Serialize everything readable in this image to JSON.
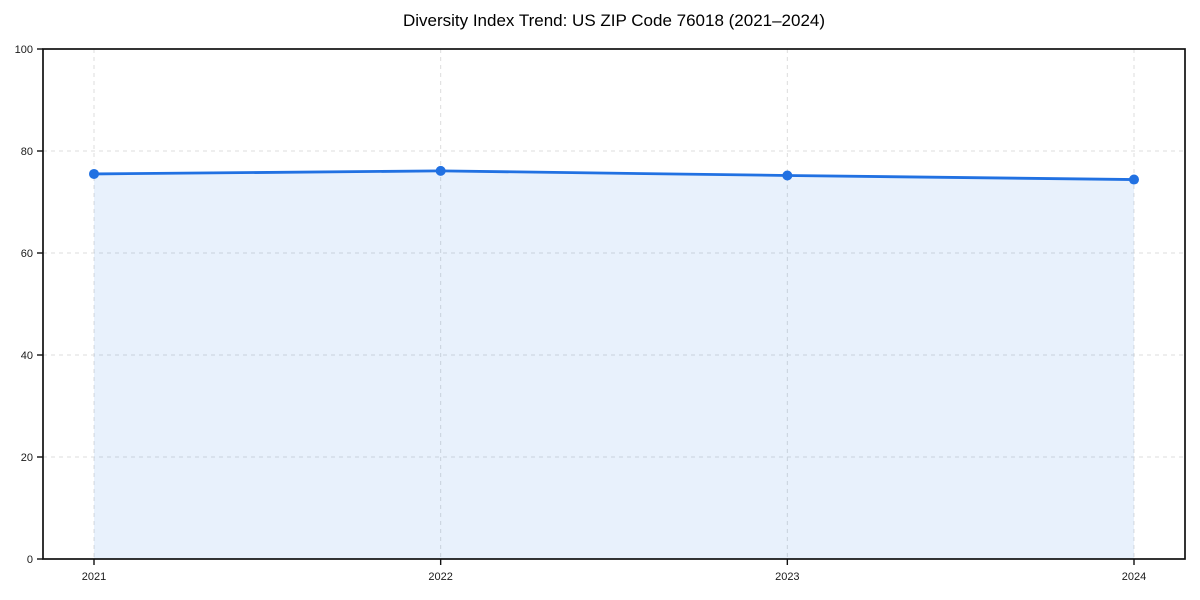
{
  "page": {
    "background": "#ffffff"
  },
  "chart_data": {
    "type": "area",
    "title": "Diversity Index Trend: US ZIP Code 76018 (2021–2024)",
    "categories": [
      "2021",
      "2022",
      "2023",
      "2024"
    ],
    "series": [
      {
        "name": "Diversity Index",
        "values": [
          75.5,
          76.1,
          75.2,
          74.4
        ]
      }
    ],
    "xlabel": "",
    "ylabel": "",
    "ylim": [
      0,
      100
    ],
    "yticks": [
      0,
      20,
      40,
      60,
      80,
      100
    ],
    "grid": true,
    "grid_style": "dashed",
    "legend": "none",
    "colors": {
      "line": "#2171e2",
      "marker": "#2171e2",
      "fill": "rgba(33, 113, 226, 0.10)",
      "grid": "#dcdcdc",
      "spine": "#111111",
      "tick_label": "#1a1a1a",
      "title": "#000000"
    }
  }
}
